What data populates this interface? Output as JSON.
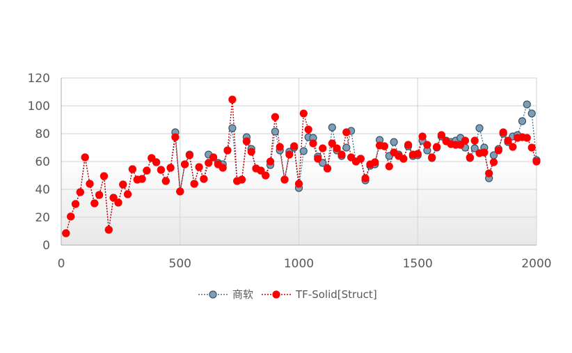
{
  "chart_data": {
    "type": "scatter",
    "title": "",
    "xlabel": "",
    "ylabel": "",
    "xlim": [
      0,
      2000
    ],
    "ylim": [
      0,
      120
    ],
    "xticks": [
      "0",
      "500",
      "1000",
      "1500",
      "2000"
    ],
    "yticks": [
      "0",
      "20",
      "40",
      "60",
      "80",
      "100",
      "120"
    ],
    "grid": true,
    "legend_position": "bottom",
    "series": [
      {
        "name": "商软",
        "marker_color": "#7f9db4",
        "marker_edge": "#35556b",
        "line_color": "#4f7590",
        "points": [
          [
            20,
            8.5
          ],
          [
            40,
            20.5
          ],
          [
            60,
            29.5
          ],
          [
            80,
            38
          ],
          [
            100,
            63
          ],
          [
            120,
            44
          ],
          [
            140,
            30
          ],
          [
            160,
            36
          ],
          [
            180,
            49.5
          ],
          [
            200,
            11
          ],
          [
            220,
            34
          ],
          [
            240,
            30.5
          ],
          [
            260,
            43.5
          ],
          [
            280,
            36.5
          ],
          [
            300,
            54.5
          ],
          [
            320,
            47
          ],
          [
            340,
            47.5
          ],
          [
            360,
            53.5
          ],
          [
            380,
            62.5
          ],
          [
            400,
            59.5
          ],
          [
            420,
            54
          ],
          [
            440,
            46
          ],
          [
            460,
            55.5
          ],
          [
            480,
            81
          ],
          [
            500,
            38.5
          ],
          [
            520,
            58
          ],
          [
            540,
            65
          ],
          [
            560,
            44
          ],
          [
            580,
            56
          ],
          [
            600,
            47.5
          ],
          [
            620,
            65
          ],
          [
            640,
            63
          ],
          [
            660,
            59
          ],
          [
            680,
            58
          ],
          [
            700,
            68
          ],
          [
            720,
            84
          ],
          [
            740,
            46
          ],
          [
            760,
            47
          ],
          [
            780,
            77.5
          ],
          [
            800,
            69
          ],
          [
            820,
            55
          ],
          [
            840,
            53.5
          ],
          [
            860,
            50
          ],
          [
            880,
            57.5
          ],
          [
            900,
            81.5
          ],
          [
            920,
            68
          ],
          [
            940,
            47
          ],
          [
            960,
            67
          ],
          [
            980,
            70
          ],
          [
            1000,
            41
          ],
          [
            1020,
            67.5
          ],
          [
            1040,
            77.5
          ],
          [
            1060,
            77
          ],
          [
            1080,
            63.5
          ],
          [
            1100,
            59
          ],
          [
            1120,
            55
          ],
          [
            1140,
            84.5
          ],
          [
            1160,
            68
          ],
          [
            1180,
            64
          ],
          [
            1200,
            70
          ],
          [
            1220,
            82
          ],
          [
            1240,
            60
          ],
          [
            1260,
            62
          ],
          [
            1280,
            46.5
          ],
          [
            1300,
            57
          ],
          [
            1320,
            58
          ],
          [
            1340,
            75.5
          ],
          [
            1360,
            71
          ],
          [
            1380,
            64
          ],
          [
            1400,
            74
          ],
          [
            1420,
            65
          ],
          [
            1440,
            62
          ],
          [
            1460,
            71
          ],
          [
            1480,
            64
          ],
          [
            1500,
            64.5
          ],
          [
            1520,
            75
          ],
          [
            1540,
            68
          ],
          [
            1560,
            62.5
          ],
          [
            1580,
            70
          ],
          [
            1600,
            78
          ],
          [
            1620,
            75
          ],
          [
            1640,
            74
          ],
          [
            1660,
            75
          ],
          [
            1680,
            77
          ],
          [
            1700,
            70
          ],
          [
            1720,
            62.5
          ],
          [
            1740,
            69.5
          ],
          [
            1760,
            84
          ],
          [
            1780,
            70
          ],
          [
            1800,
            48
          ],
          [
            1820,
            64.5
          ],
          [
            1840,
            69
          ],
          [
            1860,
            80
          ],
          [
            1880,
            74
          ],
          [
            1900,
            78
          ],
          [
            1920,
            79
          ],
          [
            1940,
            89
          ],
          [
            1960,
            101
          ],
          [
            1980,
            94.5
          ],
          [
            2000,
            61
          ]
        ]
      },
      {
        "name": "TF-Solid[Struct]",
        "marker_color": "#ff0000",
        "marker_edge": "#ff0000",
        "line_color": "#c00000",
        "points": [
          [
            20,
            8.5
          ],
          [
            40,
            20.5
          ],
          [
            60,
            29.5
          ],
          [
            80,
            38
          ],
          [
            100,
            63
          ],
          [
            120,
            44
          ],
          [
            140,
            30
          ],
          [
            160,
            36
          ],
          [
            180,
            49.5
          ],
          [
            200,
            11
          ],
          [
            220,
            34
          ],
          [
            240,
            30.5
          ],
          [
            260,
            43.5
          ],
          [
            280,
            36.5
          ],
          [
            300,
            54.5
          ],
          [
            320,
            47
          ],
          [
            340,
            47.5
          ],
          [
            360,
            53.5
          ],
          [
            380,
            62.5
          ],
          [
            400,
            59.5
          ],
          [
            420,
            54
          ],
          [
            440,
            46
          ],
          [
            460,
            55.5
          ],
          [
            480,
            77.5
          ],
          [
            500,
            38.5
          ],
          [
            520,
            58
          ],
          [
            540,
            64.5
          ],
          [
            560,
            44
          ],
          [
            580,
            56
          ],
          [
            600,
            47.5
          ],
          [
            620,
            59
          ],
          [
            640,
            63
          ],
          [
            660,
            58
          ],
          [
            680,
            55.5
          ],
          [
            700,
            68
          ],
          [
            720,
            104.5
          ],
          [
            740,
            46
          ],
          [
            760,
            47
          ],
          [
            780,
            74.5
          ],
          [
            800,
            67
          ],
          [
            820,
            55
          ],
          [
            840,
            53.5
          ],
          [
            860,
            50
          ],
          [
            880,
            60
          ],
          [
            900,
            92
          ],
          [
            920,
            70.5
          ],
          [
            940,
            47
          ],
          [
            960,
            65
          ],
          [
            980,
            71
          ],
          [
            1000,
            44
          ],
          [
            1020,
            94.5
          ],
          [
            1040,
            83
          ],
          [
            1060,
            73
          ],
          [
            1080,
            62
          ],
          [
            1100,
            69.5
          ],
          [
            1120,
            55
          ],
          [
            1140,
            73
          ],
          [
            1160,
            69.5
          ],
          [
            1180,
            65
          ],
          [
            1200,
            81
          ],
          [
            1220,
            63
          ],
          [
            1240,
            60
          ],
          [
            1260,
            62
          ],
          [
            1280,
            48
          ],
          [
            1300,
            58
          ],
          [
            1320,
            59.5
          ],
          [
            1340,
            71.5
          ],
          [
            1360,
            71
          ],
          [
            1380,
            56.5
          ],
          [
            1400,
            66.5
          ],
          [
            1420,
            64
          ],
          [
            1440,
            62
          ],
          [
            1460,
            72
          ],
          [
            1480,
            65
          ],
          [
            1500,
            65.5
          ],
          [
            1520,
            78
          ],
          [
            1540,
            72
          ],
          [
            1560,
            63
          ],
          [
            1580,
            70.5
          ],
          [
            1600,
            79
          ],
          [
            1620,
            74.5
          ],
          [
            1640,
            72.5
          ],
          [
            1660,
            72
          ],
          [
            1680,
            72
          ],
          [
            1700,
            75
          ],
          [
            1720,
            63
          ],
          [
            1740,
            75
          ],
          [
            1760,
            66
          ],
          [
            1780,
            66.5
          ],
          [
            1800,
            51.5
          ],
          [
            1820,
            59.5
          ],
          [
            1840,
            68
          ],
          [
            1860,
            81
          ],
          [
            1880,
            75
          ],
          [
            1900,
            70.5
          ],
          [
            1920,
            77
          ],
          [
            1940,
            77.5
          ],
          [
            1960,
            77
          ],
          [
            1980,
            70
          ],
          [
            2000,
            60
          ]
        ]
      }
    ]
  }
}
